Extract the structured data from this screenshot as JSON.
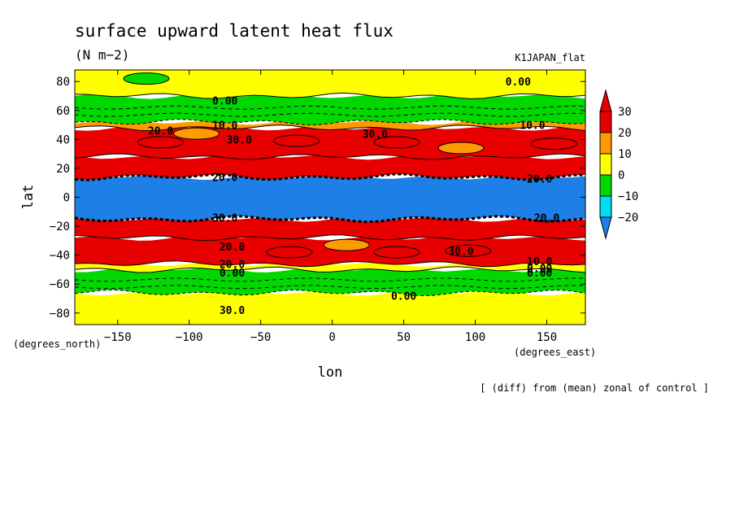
{
  "chart_data": {
    "type": "heatmap",
    "title": "surface upward latent heat flux",
    "units": "(N m−2)",
    "experiment": "K1JAPAN_flat",
    "xlabel": "lon",
    "ylabel": "lat",
    "x_units": "(degrees_east)",
    "y_units": "(degrees_north)",
    "note": "[ (diff) from (mean) zonal of control ]",
    "xlim": [
      -180,
      177
    ],
    "ylim": [
      -88,
      88
    ],
    "x_ticks": [
      -150,
      -100,
      -50,
      0,
      50,
      100,
      150
    ],
    "x_tick_labels": [
      "−150",
      "−100",
      "−50",
      "0",
      "50",
      "100",
      "150"
    ],
    "y_ticks": [
      -80,
      -60,
      -40,
      -20,
      0,
      20,
      40,
      60,
      80
    ],
    "y_tick_labels": [
      "−80",
      "−60",
      "−40",
      "−20",
      "0",
      "20",
      "40",
      "60",
      "80"
    ],
    "colorbar": {
      "levels": [
        -20,
        -10,
        0,
        10,
        20,
        30
      ],
      "labels": [
        "−20",
        "−10",
        "0",
        "10",
        "20",
        "30"
      ],
      "colors": [
        "#1e7fe6",
        "#00dcf0",
        "#00d800",
        "#ffff00",
        "#ff9a00",
        "#e80000"
      ]
    },
    "zonal_bands": [
      {
        "lat_min": -88,
        "lat_max": -66,
        "value": 5
      },
      {
        "lat_min": -66,
        "lat_max": -50,
        "value": -5
      },
      {
        "lat_min": -50,
        "lat_max": -46,
        "value": 5
      },
      {
        "lat_min": -46,
        "lat_max": -28,
        "value": 25
      },
      {
        "lat_min": -28,
        "lat_max": -15,
        "value": 35
      },
      {
        "lat_min": -15,
        "lat_max": 14,
        "value": -25
      },
      {
        "lat_min": 14,
        "lat_max": 28,
        "value": 35
      },
      {
        "lat_min": 28,
        "lat_max": 48,
        "value": 25
      },
      {
        "lat_min": 48,
        "lat_max": 52,
        "value": 15
      },
      {
        "lat_min": 52,
        "lat_max": 70,
        "value": -5
      },
      {
        "lat_min": 70,
        "lat_max": 88,
        "value": 5
      }
    ],
    "patches": [
      {
        "lon": -130,
        "lat": 82,
        "value": -5
      },
      {
        "lon": -120,
        "lat": 38,
        "value": 35
      },
      {
        "lon": -25,
        "lat": 39,
        "value": 35
      },
      {
        "lon": 45,
        "lat": 38,
        "value": 35
      },
      {
        "lon": 155,
        "lat": 37,
        "value": 35
      },
      {
        "lon": -95,
        "lat": 44,
        "value": 15
      },
      {
        "lon": 90,
        "lat": 34,
        "value": 15
      },
      {
        "lon": 10,
        "lat": -33,
        "value": 15
      },
      {
        "lon": -30,
        "lat": -38,
        "value": 35
      },
      {
        "lon": 45,
        "lat": -38,
        "value": 35
      },
      {
        "lon": 95,
        "lat": -37,
        "value": 35
      }
    ],
    "contour_labels": [
      "0.00",
      "10.0",
      "20.0",
      "30.0",
      "30.0",
      "10.0",
      "0.00",
      "20.0",
      "20.0",
      "30.0",
      "20.0",
      "20.0",
      "30.0",
      "20.0",
      "0.00",
      "0.00",
      "0.00",
      "30.0",
      "10.0",
      "0.00"
    ]
  }
}
